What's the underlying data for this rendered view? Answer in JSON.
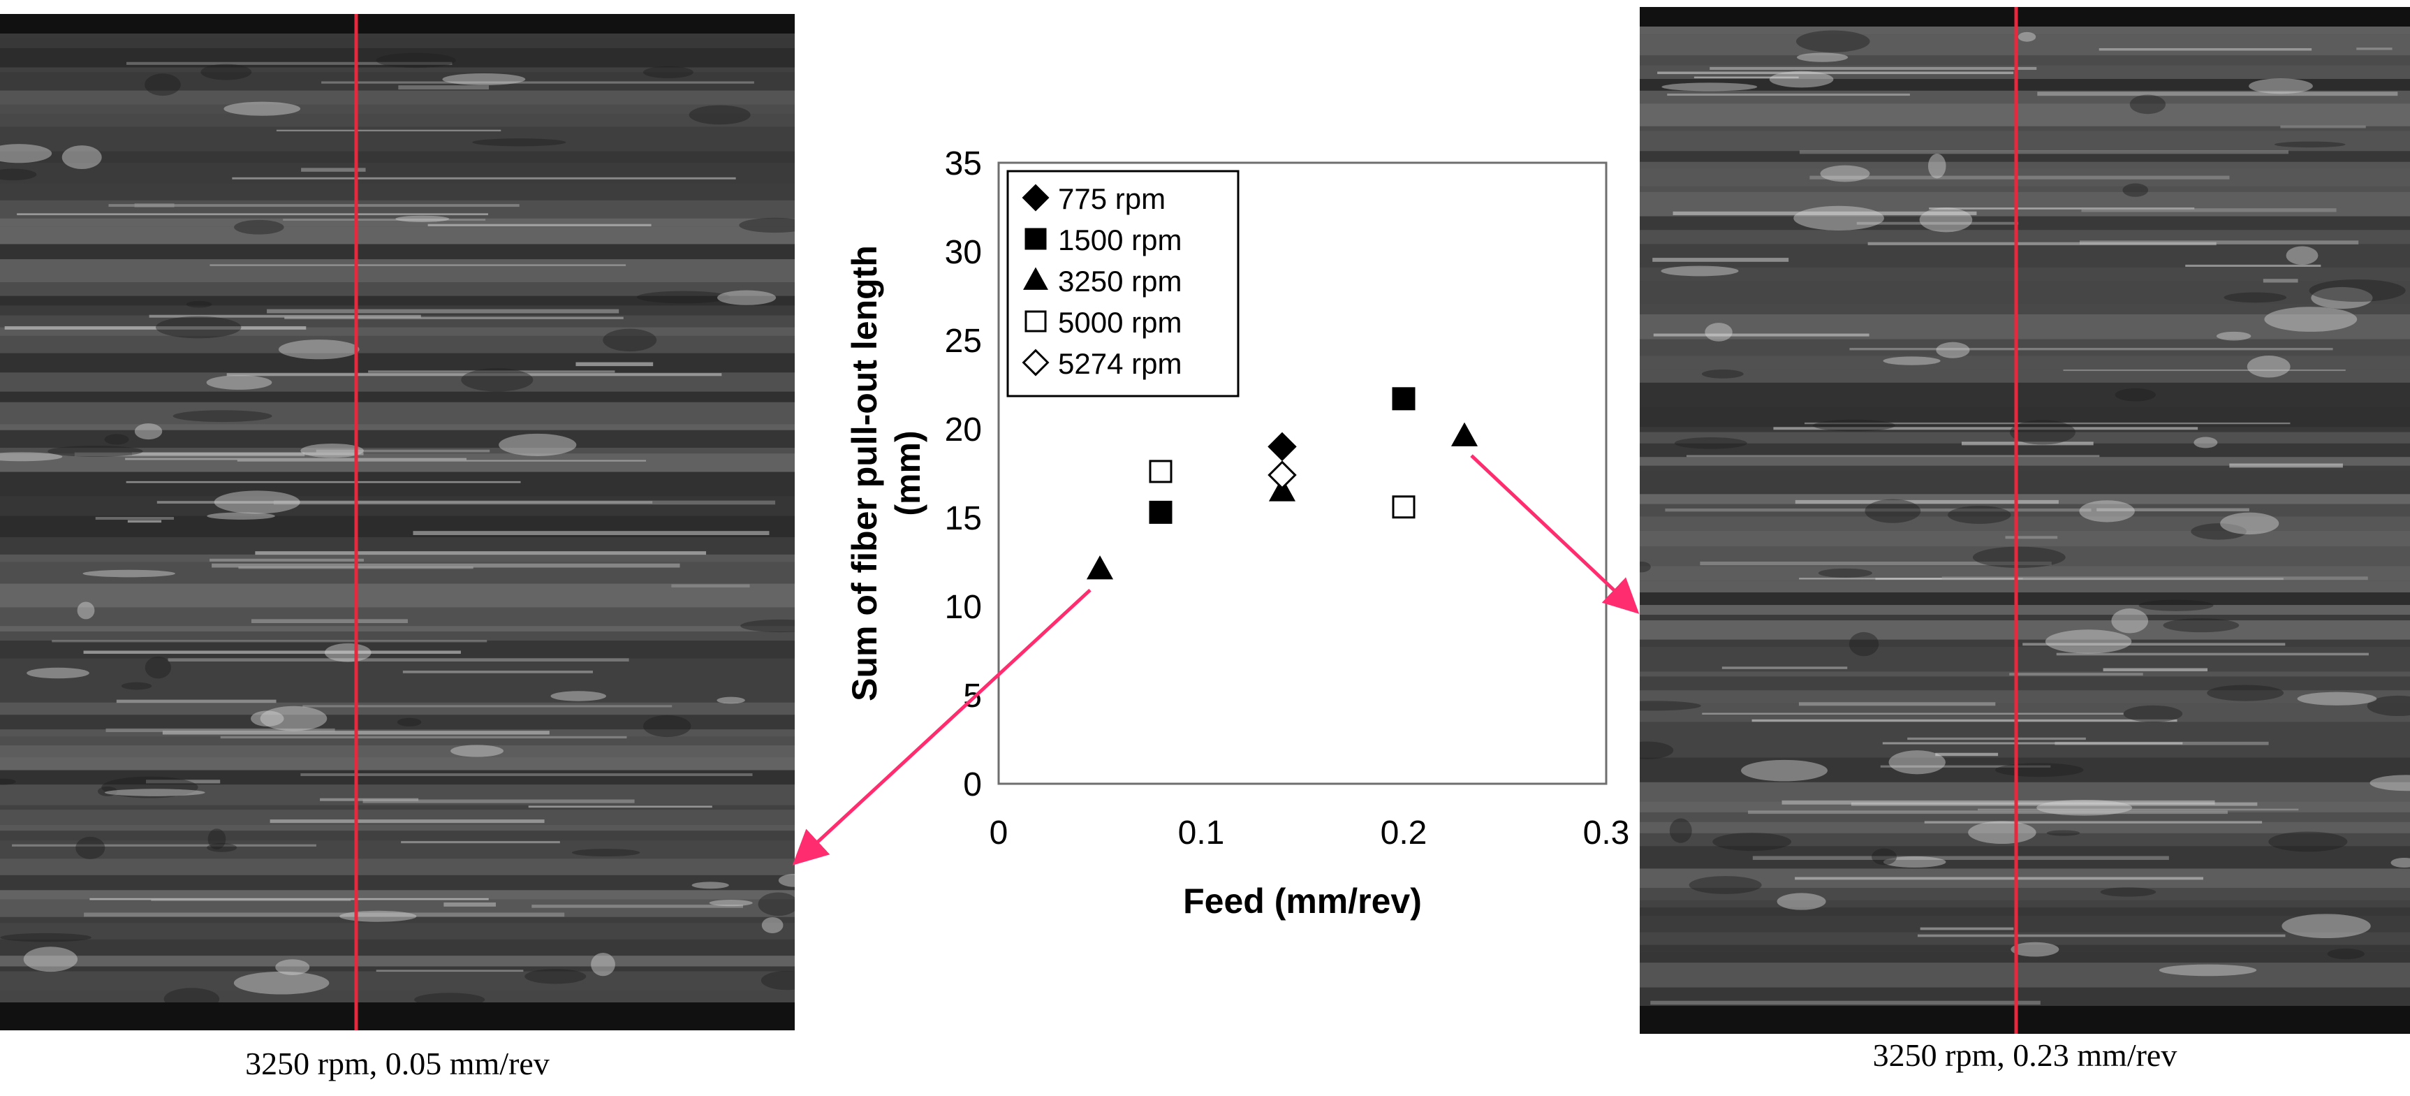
{
  "figure": {
    "left_caption": "3250 rpm, 0.05 mm/rev",
    "right_caption": "3250 rpm, 0.23 mm/rev",
    "colors": {
      "guide_line": "#e8283c",
      "arrow": "#ff2d6f",
      "marker": "#000000"
    }
  },
  "chart_data": {
    "type": "scatter",
    "title": "",
    "xlabel": "Feed (mm/rev)",
    "ylabel": "Sum of fiber pull-out length (mm)",
    "xlim": [
      0,
      0.3
    ],
    "ylim": [
      0,
      35
    ],
    "xticks": [
      "0",
      "0.1",
      "0.2",
      "0.3"
    ],
    "yticks": [
      "0",
      "5",
      "10",
      "15",
      "20",
      "25",
      "30",
      "35"
    ],
    "grid": false,
    "legend_position": "top-left",
    "series": [
      {
        "name": "775 rpm",
        "marker": "filled-diamond",
        "points": [
          [
            0.14,
            19.0
          ]
        ]
      },
      {
        "name": "1500 rpm",
        "marker": "filled-square",
        "points": [
          [
            0.08,
            15.3
          ],
          [
            0.2,
            21.7
          ]
        ]
      },
      {
        "name": "3250 rpm",
        "marker": "filled-triangle",
        "points": [
          [
            0.05,
            12.1
          ],
          [
            0.14,
            16.5
          ],
          [
            0.23,
            19.6
          ]
        ]
      },
      {
        "name": "5000 rpm",
        "marker": "open-square",
        "points": [
          [
            0.08,
            17.6
          ],
          [
            0.2,
            15.6
          ]
        ]
      },
      {
        "name": "5274 rpm",
        "marker": "open-diamond",
        "points": [
          [
            0.14,
            17.4
          ]
        ]
      }
    ]
  }
}
